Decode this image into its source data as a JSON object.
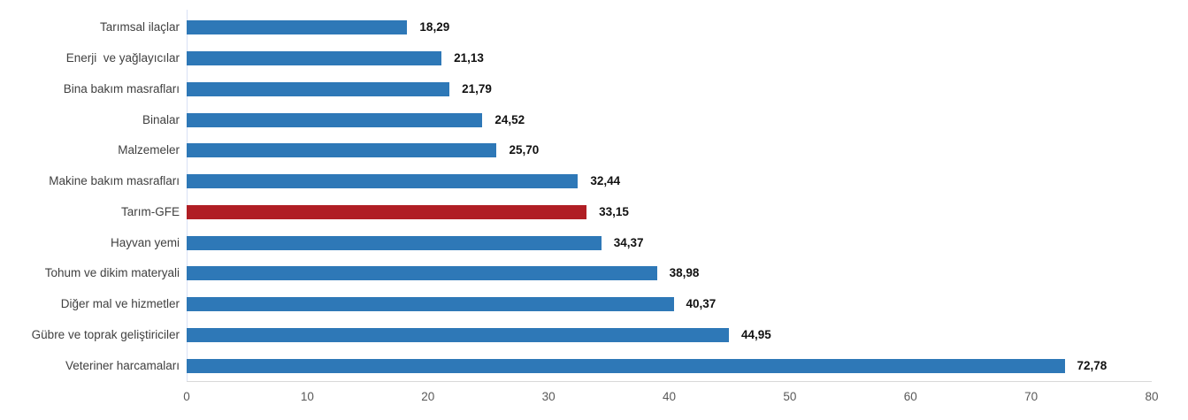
{
  "chart_data": {
    "type": "bar",
    "orientation": "horizontal",
    "title": "",
    "xlabel": "",
    "ylabel": "",
    "xlim": [
      0,
      80
    ],
    "x_ticks": [
      "0",
      "10",
      "20",
      "30",
      "40",
      "50",
      "60",
      "70",
      "80"
    ],
    "grid": "off",
    "legend": "none",
    "decimal_separator": "comma",
    "highlight_category": "Tarım-GFE",
    "colors": {
      "bar": "#2e78b7",
      "highlight": "#b01e24",
      "category_label": "#404040",
      "value_label": "#111111",
      "tick_label": "#595959",
      "y_axis_line": "#d9e1f5",
      "x_axis_line": "#d9d9d9"
    },
    "categories": [
      "Tarımsal ilaçlar",
      "Enerji  ve yağlayıcılar",
      "Bina bakım masrafları",
      "Binalar",
      "Malzemeler",
      "Makine bakım masrafları",
      "Tarım-GFE",
      "Hayvan yemi",
      "Tohum ve dikim materyali",
      "Diğer mal ve hizmetler",
      "Gübre ve toprak geliştiriciler",
      "Veteriner harcamaları"
    ],
    "values": [
      18.29,
      21.13,
      21.79,
      24.52,
      25.7,
      32.44,
      33.15,
      34.37,
      38.98,
      40.37,
      44.95,
      72.78
    ],
    "value_labels": [
      "18,29",
      "21,13",
      "21,79",
      "24,52",
      "25,70",
      "32,44",
      "33,15",
      "34,37",
      "38,98",
      "40,37",
      "44,95",
      "72,78"
    ]
  }
}
